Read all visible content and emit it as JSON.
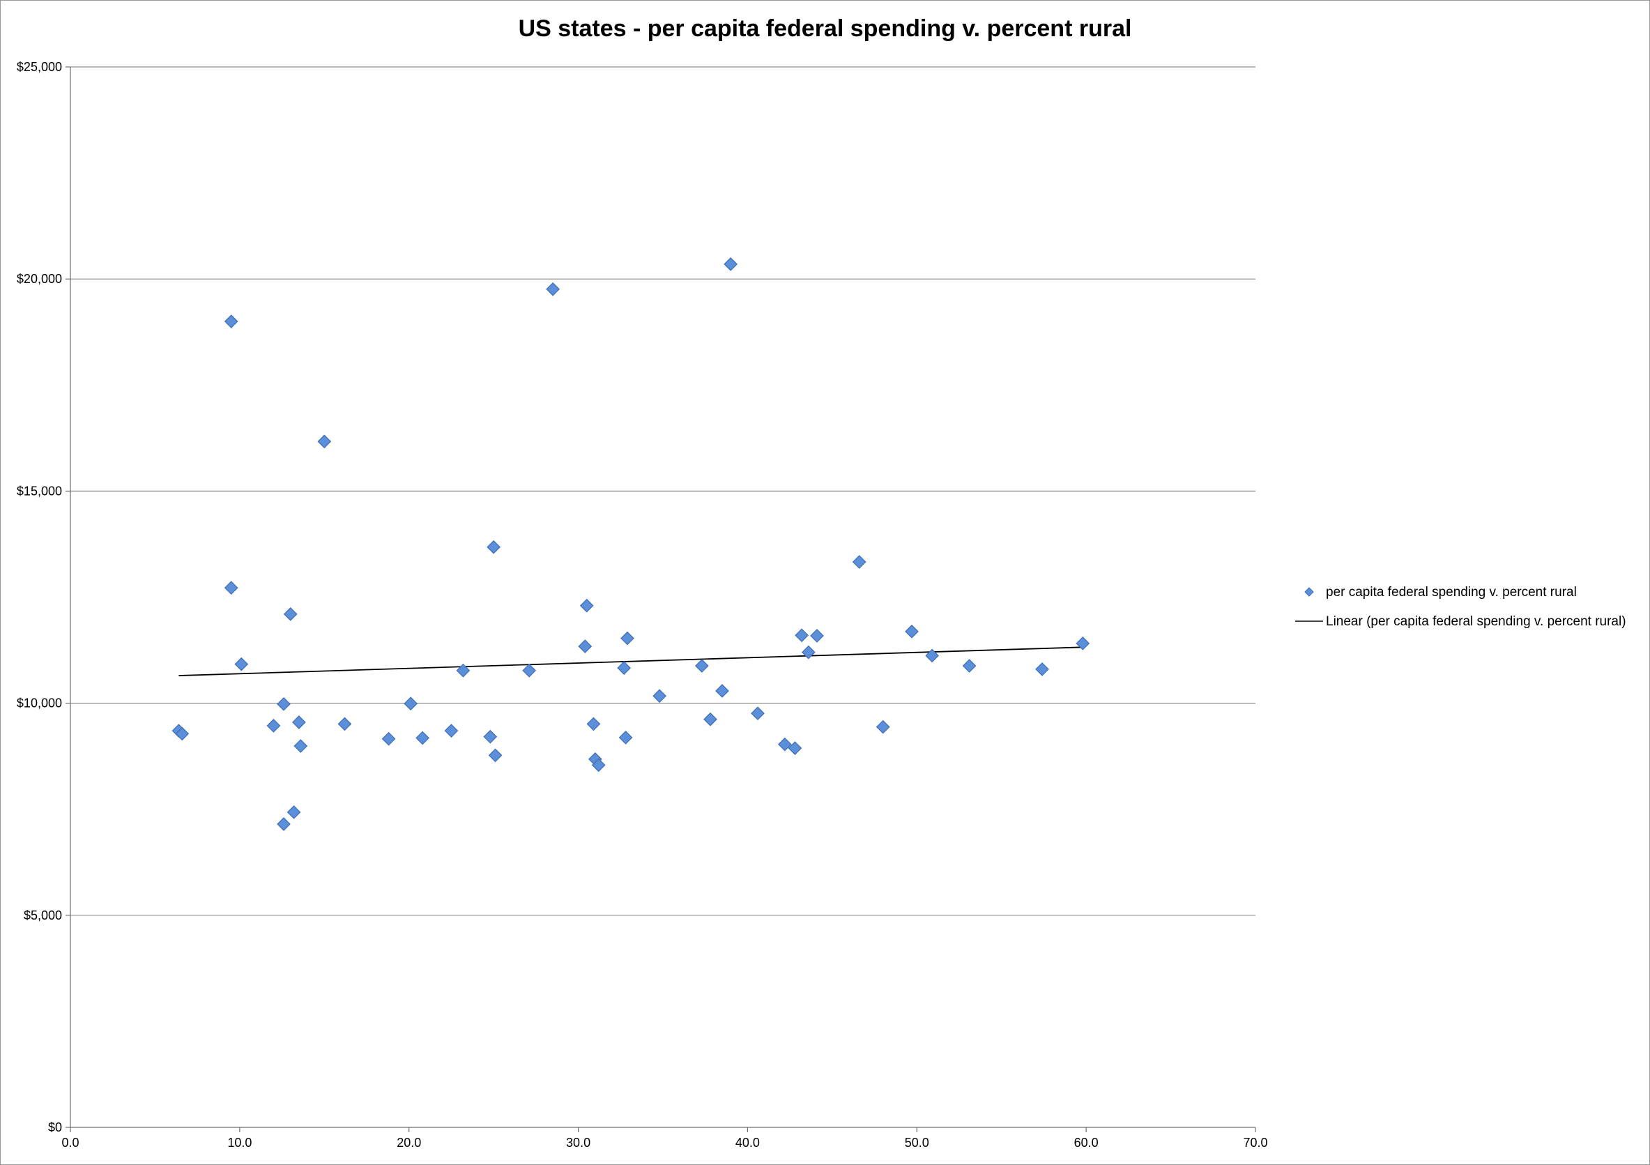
{
  "chart_data": {
    "type": "scatter",
    "title": "US states - per capita federal spending v. percent rural",
    "xlabel": "",
    "ylabel": "",
    "xlim": [
      0,
      70
    ],
    "ylim": [
      0,
      25000
    ],
    "x_ticks": [
      0,
      10,
      20,
      30,
      40,
      50,
      60,
      70
    ],
    "x_tick_labels": [
      "0.0",
      "10.0",
      "20.0",
      "30.0",
      "40.0",
      "50.0",
      "60.0",
      "70.0"
    ],
    "y_ticks": [
      0,
      5000,
      10000,
      15000,
      20000,
      25000
    ],
    "y_tick_labels": [
      "$0",
      "$5,000",
      "$10,000",
      "$15,000",
      "$20,000",
      "$25,000"
    ],
    "grid": "horizontal",
    "legend_position": "right",
    "series": [
      {
        "name": "per capita federal spending v. percent rural",
        "color": "#5b8fd9",
        "marker": "diamond",
        "points": [
          [
            6.4,
            9350
          ],
          [
            6.6,
            9280
          ],
          [
            9.5,
            19000
          ],
          [
            9.5,
            12720
          ],
          [
            10.1,
            10920
          ],
          [
            12.0,
            9470
          ],
          [
            12.6,
            9980
          ],
          [
            12.6,
            7150
          ],
          [
            13.0,
            12100
          ],
          [
            13.2,
            7430
          ],
          [
            13.5,
            9550
          ],
          [
            13.6,
            8990
          ],
          [
            15.0,
            16170
          ],
          [
            16.2,
            9510
          ],
          [
            18.8,
            9160
          ],
          [
            20.1,
            9990
          ],
          [
            20.8,
            9180
          ],
          [
            22.5,
            9350
          ],
          [
            23.2,
            10770
          ],
          [
            24.8,
            9210
          ],
          [
            25.0,
            13680
          ],
          [
            25.1,
            8770
          ],
          [
            27.1,
            10770
          ],
          [
            28.5,
            19760
          ],
          [
            30.4,
            11340
          ],
          [
            30.5,
            12300
          ],
          [
            30.9,
            9510
          ],
          [
            31.0,
            8680
          ],
          [
            31.2,
            8540
          ],
          [
            32.7,
            10830
          ],
          [
            32.8,
            9190
          ],
          [
            32.9,
            11530
          ],
          [
            34.8,
            10170
          ],
          [
            37.3,
            10880
          ],
          [
            37.8,
            9620
          ],
          [
            38.5,
            10290
          ],
          [
            39.0,
            20350
          ],
          [
            40.6,
            9760
          ],
          [
            42.2,
            9030
          ],
          [
            42.8,
            8940
          ],
          [
            43.2,
            11600
          ],
          [
            43.6,
            11200
          ],
          [
            44.1,
            11590
          ],
          [
            46.6,
            13330
          ],
          [
            48.0,
            9440
          ],
          [
            49.7,
            11690
          ],
          [
            50.9,
            11120
          ],
          [
            53.1,
            10880
          ],
          [
            57.4,
            10800
          ],
          [
            59.8,
            11410
          ]
        ]
      },
      {
        "name": "Linear (per capita federal spending v. percent rural)",
        "color": "#000000",
        "type": "line",
        "x": [
          6.4,
          59.8
        ],
        "y": [
          10650,
          11320
        ]
      }
    ]
  }
}
